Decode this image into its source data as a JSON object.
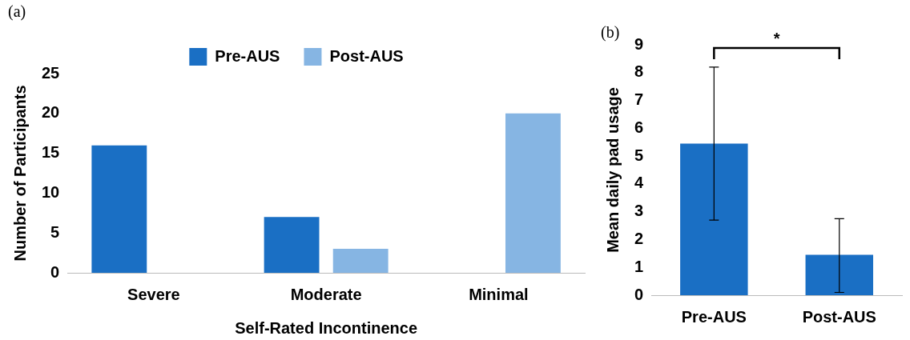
{
  "chart_data": [
    {
      "type": "bar",
      "title": "(a)",
      "xlabel": "Self-Rated Incontinence",
      "ylabel": "Number of Participants",
      "categories": [
        "Severe",
        "Moderate",
        "Minimal"
      ],
      "series": [
        {
          "name": "Pre-AUS",
          "color": "#1a6fc4",
          "values": [
            16,
            7,
            0
          ]
        },
        {
          "name": "Post-AUS",
          "color": "#86b5e3",
          "values": [
            0,
            3,
            20
          ]
        }
      ],
      "ylim": [
        0,
        25
      ],
      "yticks": [
        0,
        5,
        10,
        15,
        20,
        25
      ],
      "grid": false,
      "legend": "top"
    },
    {
      "type": "bar",
      "title": "(b)",
      "ylabel": "Mean daily pad usage",
      "categories": [
        "Pre-AUS",
        "Post-AUS"
      ],
      "values": [
        5.45,
        1.45
      ],
      "color": "#1a6fc4",
      "errors": [
        [
          2.7,
          8.2
        ],
        [
          0.1,
          2.75
        ]
      ],
      "ylim": [
        0,
        9
      ],
      "yticks": [
        0,
        1,
        2,
        3,
        4,
        5,
        6,
        7,
        8,
        9
      ],
      "grid": false,
      "legend": false,
      "annotations": [
        "*"
      ]
    }
  ]
}
